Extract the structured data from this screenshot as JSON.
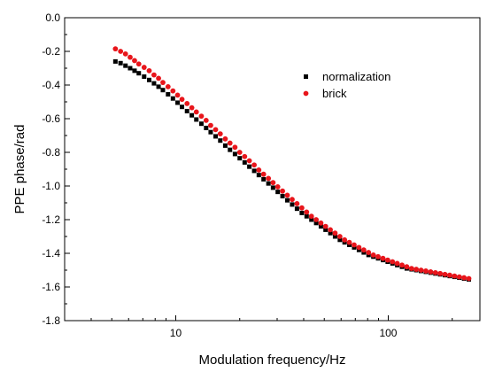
{
  "chart_data": {
    "type": "scatter",
    "xlabel": "Modulation frequency/Hz",
    "ylabel": "PPE phase/rad",
    "xscale": "log",
    "xlim": [
      3.0,
      270
    ],
    "ylim": [
      -1.8,
      0.0
    ],
    "x_ticks": [
      10,
      100
    ],
    "x_tick_labels": [
      "10",
      "100"
    ],
    "y_ticks": [
      0.0,
      -0.2,
      -0.4,
      -0.6,
      -0.8,
      -1.0,
      -1.2,
      -1.4,
      -1.6,
      -1.8
    ],
    "y_tick_labels": [
      "0.0",
      "-0.2",
      "-0.4",
      "-0.6",
      "-0.8",
      "-1.0",
      "-1.2",
      "-1.4",
      "-1.6",
      "-1.8"
    ],
    "grid": false,
    "legend_position": "upper-right",
    "x": [
      5.2,
      5.5,
      5.8,
      6.1,
      6.4,
      6.7,
      7.1,
      7.5,
      7.9,
      8.3,
      8.7,
      9.2,
      9.7,
      10.2,
      10.7,
      11.3,
      11.9,
      12.5,
      13.2,
      13.9,
      14.6,
      15.4,
      16.2,
      17.1,
      18.0,
      19.0,
      20.0,
      21.1,
      22.2,
      23.4,
      24.6,
      25.9,
      27.3,
      28.7,
      30.2,
      31.8,
      33.5,
      35.3,
      37.2,
      39.2,
      41.3,
      43.5,
      45.8,
      48.2,
      50.7,
      53.4,
      56.2,
      59.2,
      62.3,
      65.6,
      69.1,
      72.8,
      76.7,
      80.8,
      85.1,
      89.6,
      94.4,
      99.4,
      104.7,
      110.2,
      116.1,
      122.2,
      128.7,
      135.5,
      142.7,
      150.3,
      158.3,
      166.7,
      175.5,
      184.8,
      194.6,
      205.0,
      215.9,
      227.4,
      239.5
    ],
    "series": [
      {
        "name": "normalization",
        "color": "#000000",
        "marker": "square",
        "values": [
          -0.26,
          -0.27,
          -0.285,
          -0.3,
          -0.315,
          -0.33,
          -0.35,
          -0.37,
          -0.39,
          -0.41,
          -0.43,
          -0.455,
          -0.48,
          -0.505,
          -0.53,
          -0.555,
          -0.58,
          -0.605,
          -0.63,
          -0.655,
          -0.68,
          -0.705,
          -0.73,
          -0.76,
          -0.785,
          -0.81,
          -0.835,
          -0.86,
          -0.885,
          -0.91,
          -0.935,
          -0.96,
          -0.985,
          -1.01,
          -1.035,
          -1.06,
          -1.085,
          -1.11,
          -1.135,
          -1.16,
          -1.18,
          -1.2,
          -1.22,
          -1.24,
          -1.26,
          -1.28,
          -1.3,
          -1.32,
          -1.335,
          -1.35,
          -1.365,
          -1.38,
          -1.395,
          -1.41,
          -1.42,
          -1.43,
          -1.44,
          -1.45,
          -1.46,
          -1.47,
          -1.48,
          -1.49,
          -1.495,
          -1.5,
          -1.505,
          -1.51,
          -1.515,
          -1.52,
          -1.525,
          -1.53,
          -1.535,
          -1.54,
          -1.545,
          -1.55,
          -1.555
        ]
      },
      {
        "name": "brick",
        "color": "#e8151b",
        "marker": "circle",
        "values": [
          -0.185,
          -0.2,
          -0.215,
          -0.235,
          -0.255,
          -0.275,
          -0.295,
          -0.315,
          -0.34,
          -0.36,
          -0.385,
          -0.41,
          -0.435,
          -0.46,
          -0.485,
          -0.51,
          -0.535,
          -0.56,
          -0.585,
          -0.61,
          -0.64,
          -0.665,
          -0.69,
          -0.72,
          -0.745,
          -0.77,
          -0.8,
          -0.825,
          -0.85,
          -0.875,
          -0.905,
          -0.93,
          -0.955,
          -0.98,
          -1.005,
          -1.03,
          -1.055,
          -1.08,
          -1.105,
          -1.13,
          -1.155,
          -1.18,
          -1.2,
          -1.22,
          -1.24,
          -1.26,
          -1.28,
          -1.3,
          -1.32,
          -1.335,
          -1.35,
          -1.365,
          -1.38,
          -1.395,
          -1.41,
          -1.42,
          -1.43,
          -1.44,
          -1.45,
          -1.46,
          -1.47,
          -1.48,
          -1.49,
          -1.495,
          -1.5,
          -1.505,
          -1.51,
          -1.515,
          -1.52,
          -1.525,
          -1.53,
          -1.535,
          -1.54,
          -1.545,
          -1.55
        ]
      }
    ]
  }
}
